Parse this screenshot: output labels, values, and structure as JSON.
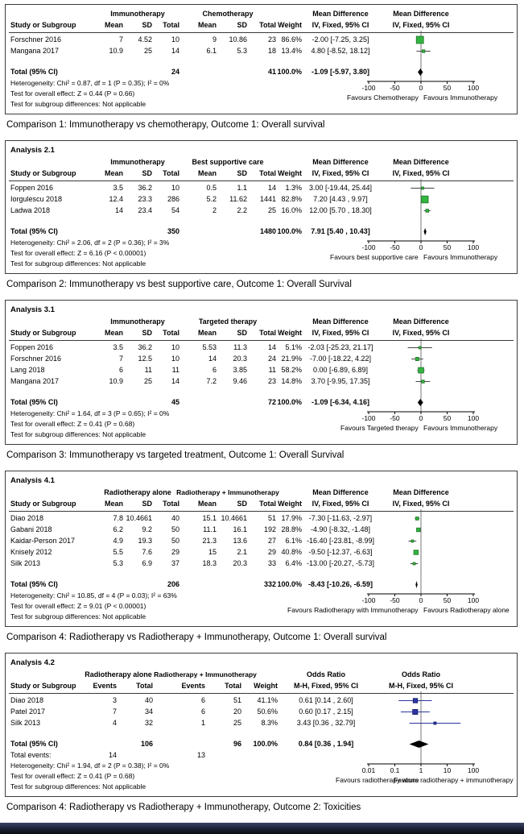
{
  "chart_data": [
    {
      "type": "forest",
      "analysis_label": null,
      "caption": "Comparison 1: Immunotherapy vs chemotherapy, Outcome 1: Overall survival",
      "group1_header": "Immunotherapy",
      "group2_header": "Chemotherapy",
      "study_col_header": "Study or Subgroup",
      "value_col_headers": [
        "Mean",
        "SD",
        "Total"
      ],
      "weight_header": "Weight",
      "measure_header": "Mean Difference",
      "measure_subheader": "IV, Fixed, 95% CI",
      "scale": "linear",
      "axis_range": [
        -100,
        100
      ],
      "axis_ticks": [
        -100,
        -50,
        0,
        50,
        100
      ],
      "axis_tick_labels": [
        "-100",
        "-50",
        "0",
        "50",
        "100"
      ],
      "favours_left": "Favours Chemotherapy",
      "favours_right": "Favours Immunotherapy",
      "colors": {
        "marker": "#33b540",
        "marker_border": "#1c6e26",
        "line": "#444444",
        "diamond": "#000000"
      },
      "studies": [
        {
          "name": "Forschner 2016",
          "group1": [
            "7",
            "4.52",
            "10"
          ],
          "group2": [
            "9",
            "10.86",
            "23"
          ],
          "weight": "86.6%",
          "estimate_text": "-2.00 [-7.25, 3.25]",
          "estimate": -2.0,
          "ci_low": -7.25,
          "ci_high": 3.25
        },
        {
          "name": "Mangana 2017",
          "group1": [
            "10.9",
            "25",
            "14"
          ],
          "group2": [
            "6.1",
            "5.3",
            "18"
          ],
          "weight": "13.4%",
          "estimate_text": "4.80 [-8.52, 18.12]",
          "estimate": 4.8,
          "ci_low": -8.52,
          "ci_high": 18.12
        }
      ],
      "total": {
        "label": "Total (95% CI)",
        "group1_total": "24",
        "group2_total": "41",
        "weight": "100.0%",
        "estimate_text": "-1.09 [-5.97, 3.80]",
        "estimate": -1.09,
        "ci_low": -5.97,
        "ci_high": 3.8
      },
      "total_events": null,
      "footnotes": {
        "heterogeneity": "Heterogeneity: Chi² = 0.87, df = 1 (P = 0.35); I² = 0%",
        "overall_effect": "Test for overall effect: Z = 0.44 (P = 0.66)",
        "subgroup_differences": "Test for subgroup differences: Not applicable"
      }
    },
    {
      "type": "forest",
      "analysis_label": "Analysis 2.1",
      "caption": "Comparison 2: Immunotherapy vs best supportive care, Outcome 1: Overall Survival",
      "group1_header": "Immunotherapy",
      "group2_header": "Best supportive care",
      "study_col_header": "Study or Subgroup",
      "value_col_headers": [
        "Mean",
        "SD",
        "Total"
      ],
      "weight_header": "Weight",
      "measure_header": "Mean Difference",
      "measure_subheader": "IV, Fixed, 95% CI",
      "scale": "linear",
      "axis_range": [
        -100,
        100
      ],
      "axis_ticks": [
        -100,
        -50,
        0,
        50,
        100
      ],
      "axis_tick_labels": [
        "-100",
        "-50",
        "0",
        "50",
        "100"
      ],
      "favours_left": "Favours best supportive care",
      "favours_right": "Favours Immunotherapy",
      "colors": {
        "marker": "#33b540",
        "marker_border": "#1c6e26",
        "line": "#444444",
        "diamond": "#000000"
      },
      "studies": [
        {
          "name": "Foppen 2016",
          "group1": [
            "3.5",
            "36.2",
            "10"
          ],
          "group2": [
            "0.5",
            "1.1",
            "14"
          ],
          "weight": "1.3%",
          "estimate_text": "3.00 [-19.44, 25.44]",
          "estimate": 3.0,
          "ci_low": -19.44,
          "ci_high": 25.44
        },
        {
          "name": "Iorgulescu 2018",
          "group1": [
            "12.4",
            "23.3",
            "286"
          ],
          "group2": [
            "5.2",
            "11.62",
            "1441"
          ],
          "weight": "82.8%",
          "estimate_text": "7.20 [4.43 , 9.97]",
          "estimate": 7.2,
          "ci_low": 4.43,
          "ci_high": 9.97
        },
        {
          "name": "Ladwa 2018",
          "group1": [
            "14",
            "23.4",
            "54"
          ],
          "group2": [
            "2",
            "2.2",
            "25"
          ],
          "weight": "16.0%",
          "estimate_text": "12.00 [5.70 , 18.30]",
          "estimate": 12.0,
          "ci_low": 5.7,
          "ci_high": 18.3
        }
      ],
      "total": {
        "label": "Total (95% CI)",
        "group1_total": "350",
        "group2_total": "1480",
        "weight": "100.0%",
        "estimate_text": "7.91 [5.40 , 10.43]",
        "estimate": 7.91,
        "ci_low": 5.4,
        "ci_high": 10.43
      },
      "total_events": null,
      "footnotes": {
        "heterogeneity": "Heterogeneity: Chi² = 2.06, df = 2 (P = 0.36); I² = 3%",
        "overall_effect": "Test for overall effect: Z = 6.16 (P < 0.00001)",
        "subgroup_differences": "Test for subgroup differences: Not applicable"
      }
    },
    {
      "type": "forest",
      "analysis_label": "Analysis 3.1",
      "caption": "Comparison 3: Immunotherapy vs targeted treatment, Outcome 1: Overall Survival",
      "group1_header": "Immunotherapy",
      "group2_header": "Targeted therapy",
      "study_col_header": "Study or Subgroup",
      "value_col_headers": [
        "Mean",
        "SD",
        "Total"
      ],
      "weight_header": "Weight",
      "measure_header": "Mean Difference",
      "measure_subheader": "IV, Fixed, 95% CI",
      "scale": "linear",
      "axis_range": [
        -100,
        100
      ],
      "axis_ticks": [
        -100,
        -50,
        0,
        50,
        100
      ],
      "axis_tick_labels": [
        "-100",
        "-50",
        "0",
        "50",
        "100"
      ],
      "favours_left": "Favours Targeted therapy",
      "favours_right": "Favours Immunotherapy",
      "colors": {
        "marker": "#33b540",
        "marker_border": "#1c6e26",
        "line": "#444444",
        "diamond": "#000000"
      },
      "studies": [
        {
          "name": "Foppen 2016",
          "group1": [
            "3.5",
            "36.2",
            "10"
          ],
          "group2": [
            "5.53",
            "11.3",
            "14"
          ],
          "weight": "5.1%",
          "estimate_text": "-2.03 [-25.23, 21.17]",
          "estimate": -2.03,
          "ci_low": -25.23,
          "ci_high": 21.17
        },
        {
          "name": "Forschner 2016",
          "group1": [
            "7",
            "12.5",
            "10"
          ],
          "group2": [
            "14",
            "20.3",
            "24"
          ],
          "weight": "21.9%",
          "estimate_text": "-7.00 [-18.22, 4.22]",
          "estimate": -7.0,
          "ci_low": -18.22,
          "ci_high": 4.22
        },
        {
          "name": "Lang 2018",
          "group1": [
            "6",
            "11",
            "11"
          ],
          "group2": [
            "6",
            "3.85",
            "11"
          ],
          "weight": "58.2%",
          "estimate_text": "0.00 [-6.89, 6.89]",
          "estimate": 0.0,
          "ci_low": -6.89,
          "ci_high": 6.89
        },
        {
          "name": "Mangana 2017",
          "group1": [
            "10.9",
            "25",
            "14"
          ],
          "group2": [
            "7.2",
            "9.46",
            "23"
          ],
          "weight": "14.8%",
          "estimate_text": "3.70 [-9.95, 17.35]",
          "estimate": 3.7,
          "ci_low": -9.95,
          "ci_high": 17.35
        }
      ],
      "total": {
        "label": "Total (95% CI)",
        "group1_total": "45",
        "group2_total": "72",
        "weight": "100.0%",
        "estimate_text": "-1.09 [-6.34, 4.16]",
        "estimate": -1.09,
        "ci_low": -6.34,
        "ci_high": 4.16
      },
      "total_events": null,
      "footnotes": {
        "heterogeneity": "Heterogeneity: Chi² = 1.64, df = 3 (P = 0.65); I² = 0%",
        "overall_effect": "Test for overall effect: Z = 0.41 (P = 0.68)",
        "subgroup_differences": "Test for subgroup differences: Not applicable"
      }
    },
    {
      "type": "forest",
      "analysis_label": "Analysis 4.1",
      "caption": "Comparison 4: Radiotherapy vs Radiotherapy + Immunotherapy, Outcome 1: Overall survival",
      "group1_header": "Radiotherapy alone",
      "group2_header": "Radiotherapy + Immunotherapy",
      "study_col_header": "Study or Subgroup",
      "value_col_headers": [
        "Mean",
        "SD",
        "Total"
      ],
      "weight_header": "Weight",
      "measure_header": "Mean Difference",
      "measure_subheader": "IV, Fixed, 95% CI",
      "scale": "linear",
      "axis_range": [
        -100,
        100
      ],
      "axis_ticks": [
        -100,
        -50,
        0,
        50,
        100
      ],
      "axis_tick_labels": [
        "-100",
        "-50",
        "0",
        "50",
        "100"
      ],
      "favours_left": "Favours Radiotherapy with Immunotherapy",
      "favours_right": "Favours Radiotherapy alone",
      "colors": {
        "marker": "#33b540",
        "marker_border": "#1c6e26",
        "line": "#444444",
        "diamond": "#000000"
      },
      "studies": [
        {
          "name": "Diao 2018",
          "group1": [
            "7.8",
            "10.4661",
            "40"
          ],
          "group2": [
            "15.1",
            "10.4661",
            "51"
          ],
          "weight": "17.9%",
          "estimate_text": "-7.30 [-11.63, -2.97]",
          "estimate": -7.3,
          "ci_low": -11.63,
          "ci_high": -2.97
        },
        {
          "name": "Gabani 2018",
          "group1": [
            "6.2",
            "9.2",
            "50"
          ],
          "group2": [
            "11.1",
            "16.1",
            "192"
          ],
          "weight": "28.8%",
          "estimate_text": "-4.90 [-8.32, -1.48]",
          "estimate": -4.9,
          "ci_low": -8.32,
          "ci_high": -1.48
        },
        {
          "name": "Kaidar-Person 2017",
          "group1": [
            "4.9",
            "19.3",
            "50"
          ],
          "group2": [
            "21.3",
            "13.6",
            "27"
          ],
          "weight": "6.1%",
          "estimate_text": "-16.40 [-23.81, -8.99]",
          "estimate": -16.4,
          "ci_low": -23.81,
          "ci_high": -8.99
        },
        {
          "name": "Knisely 2012",
          "group1": [
            "5.5",
            "7.6",
            "29"
          ],
          "group2": [
            "15",
            "2.1",
            "29"
          ],
          "weight": "40.8%",
          "estimate_text": "-9.50 [-12.37, -6.63]",
          "estimate": -9.5,
          "ci_low": -12.37,
          "ci_high": -6.63
        },
        {
          "name": "Silk 2013",
          "group1": [
            "5.3",
            "6.9",
            "37"
          ],
          "group2": [
            "18.3",
            "20.3",
            "33"
          ],
          "weight": "6.4%",
          "estimate_text": "-13.00 [-20.27, -5.73]",
          "estimate": -13.0,
          "ci_low": -20.27,
          "ci_high": -5.73
        }
      ],
      "total": {
        "label": "Total (95% CI)",
        "group1_total": "206",
        "group2_total": "332",
        "weight": "100.0%",
        "estimate_text": "-8.43 [-10.26, -6.59]",
        "estimate": -8.43,
        "ci_low": -10.26,
        "ci_high": -6.59
      },
      "total_events": null,
      "footnotes": {
        "heterogeneity": "Heterogeneity: Chi² = 10.85, df = 4 (P = 0.03); I² = 63%",
        "overall_effect": "Test for overall effect: Z = 9.01 (P < 0.00001)",
        "subgroup_differences": "Test for subgroup differences: Not applicable"
      }
    },
    {
      "type": "forest",
      "analysis_label": "Analysis 4.2",
      "caption": "Comparison 4: Radiotherapy vs Radiotherapy + Immunotherapy, Outcome 2: Toxicities",
      "group1_header": "Radiotherapy alone",
      "group2_header": "Radiotherapy + Immunotherapy",
      "study_col_header": "Study or Subgroup",
      "value_col_headers": [
        "Events",
        "Total"
      ],
      "weight_header": "Weight",
      "measure_header": "Odds Ratio",
      "measure_subheader": "M-H, Fixed, 95% CI",
      "scale": "log",
      "axis_range": [
        0.01,
        100
      ],
      "axis_ticks": [
        0.01,
        0.1,
        1,
        10,
        100
      ],
      "axis_tick_labels": [
        "0.01",
        "0.1",
        "1",
        "10",
        "100"
      ],
      "favours_left": "Favours radiotherapy alone",
      "favours_right": "Favours radiotherapy + immunotherapy",
      "colors": {
        "marker": "#2c35a0",
        "marker_border": "#1a2066",
        "line": "#2c35a0",
        "diamond": "#000000"
      },
      "studies": [
        {
          "name": "Diao 2018",
          "group1": [
            "3",
            "40"
          ],
          "group2": [
            "6",
            "51"
          ],
          "weight": "41.1%",
          "estimate_text": "0.61 [0.14 , 2.60]",
          "estimate": 0.61,
          "ci_low": 0.14,
          "ci_high": 2.6
        },
        {
          "name": "Patel 2017",
          "group1": [
            "7",
            "34"
          ],
          "group2": [
            "6",
            "20"
          ],
          "weight": "50.6%",
          "estimate_text": "0.60 [0.17 , 2.15]",
          "estimate": 0.6,
          "ci_low": 0.17,
          "ci_high": 2.15
        },
        {
          "name": "Silk 2013",
          "group1": [
            "4",
            "32"
          ],
          "group2": [
            "1",
            "25"
          ],
          "weight": "8.3%",
          "estimate_text": "3.43 [0.36 , 32.79]",
          "estimate": 3.43,
          "ci_low": 0.36,
          "ci_high": 32.79
        }
      ],
      "total": {
        "label": "Total (95% CI)",
        "group1_total": "106",
        "group2_total": "96",
        "weight": "100.0%",
        "estimate_text": "0.84 [0.36 , 1.94]",
        "estimate": 0.84,
        "ci_low": 0.36,
        "ci_high": 1.94
      },
      "total_events": {
        "label": "Total events:",
        "group1": "14",
        "group2": "13"
      },
      "footnotes": {
        "heterogeneity": "Heterogeneity: Chi² = 1.94, df = 2 (P = 0.38); I² = 0%",
        "overall_effect": "Test for overall effect: Z = 0.41 (P = 0.68)",
        "subgroup_differences": "Test for subgroup differences: Not applicable"
      }
    }
  ]
}
